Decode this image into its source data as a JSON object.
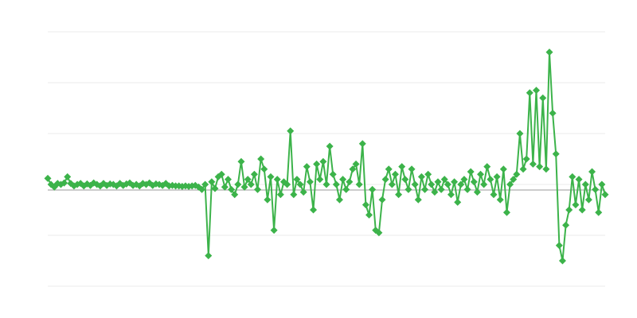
{
  "chart_data": {
    "type": "line",
    "title": "",
    "xlabel": "",
    "ylabel": "",
    "ylim": [
      -2,
      3
    ],
    "gridlines_y": [
      -2,
      -1,
      0,
      1,
      2,
      3
    ],
    "grid": true,
    "reference_line": -0.11,
    "marker": "diamond",
    "colors": {
      "series": "#3cb34a",
      "grid": "#ebebeb",
      "reference": "#999999"
    },
    "series": [
      {
        "values": [
          0.12,
          0.0,
          -0.05,
          0.02,
          0.0,
          0.03,
          0.15,
          0.02,
          -0.03,
          0.0,
          0.02,
          -0.03,
          0.01,
          -0.02,
          0.03,
          0.0,
          -0.03,
          0.02,
          -0.02,
          0.01,
          0.0,
          -0.03,
          0.02,
          -0.02,
          0.01,
          0.03,
          -0.02,
          0.0,
          -0.03,
          0.02,
          0.0,
          0.03,
          -0.02,
          0.01,
          0.0,
          -0.02,
          0.02,
          -0.03,
          -0.02,
          -0.03,
          -0.03,
          -0.04,
          -0.03,
          -0.04,
          -0.03,
          -0.02,
          -0.05,
          -0.1,
          0.0,
          -1.4,
          0.05,
          -0.08,
          0.15,
          0.2,
          -0.05,
          0.1,
          -0.1,
          -0.2,
          0.0,
          0.45,
          -0.05,
          0.1,
          0.0,
          0.2,
          -0.1,
          0.5,
          0.3,
          -0.3,
          0.15,
          -0.9,
          0.1,
          -0.2,
          0.05,
          0.0,
          1.05,
          -0.2,
          0.1,
          0.0,
          -0.15,
          0.35,
          0.05,
          -0.5,
          0.4,
          0.1,
          0.45,
          0.0,
          0.75,
          0.2,
          0.0,
          -0.3,
          0.1,
          -0.1,
          0.05,
          0.3,
          0.4,
          0.0,
          0.8,
          -0.4,
          -0.6,
          -0.1,
          -0.9,
          -0.95,
          -0.3,
          0.1,
          0.3,
          0.0,
          0.2,
          -0.2,
          0.35,
          0.1,
          -0.1,
          0.3,
          0.0,
          -0.3,
          0.15,
          -0.1,
          0.2,
          0.0,
          -0.15,
          0.05,
          -0.1,
          0.1,
          0.0,
          -0.2,
          0.05,
          -0.35,
          0.0,
          0.1,
          -0.1,
          0.25,
          0.05,
          -0.15,
          0.2,
          0.0,
          0.35,
          0.1,
          -0.2,
          0.15,
          -0.3,
          0.3,
          -0.55,
          0.0,
          0.1,
          0.2,
          1.0,
          0.3,
          0.5,
          1.8,
          0.4,
          1.85,
          0.35,
          1.7,
          0.3,
          2.6,
          1.4,
          0.6,
          -1.2,
          -1.5,
          -0.8,
          -0.5,
          0.15,
          -0.4,
          0.1,
          -0.5,
          0.0,
          -0.3,
          0.25,
          -0.1,
          -0.55,
          0.0,
          -0.2
        ]
      }
    ]
  }
}
